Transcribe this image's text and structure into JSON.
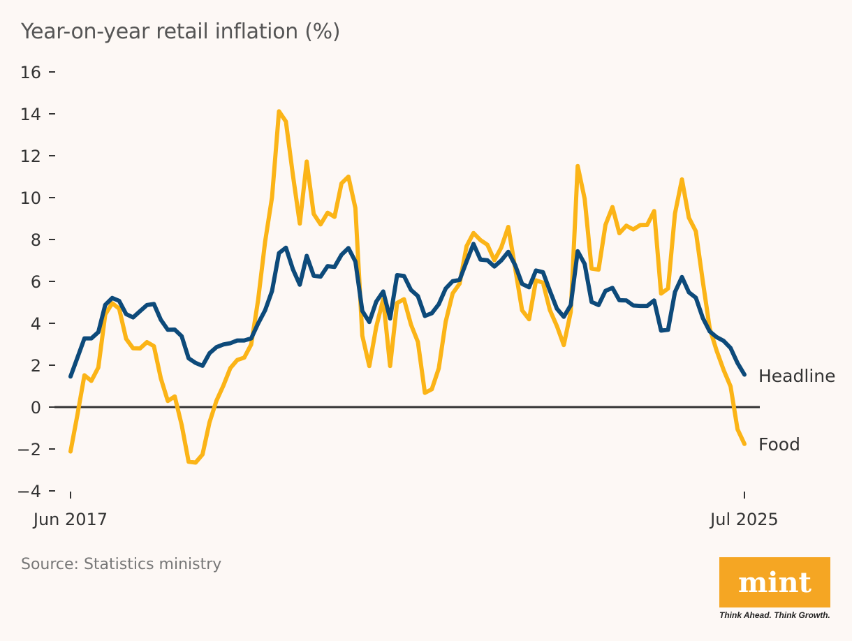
{
  "title": "Year-on-year retail inflation (%)",
  "source": "Source: Statistics ministry",
  "brand": {
    "name": "mint",
    "tagline": "Think Ahead. Think Growth.",
    "color": "#f5a623"
  },
  "chart_data": {
    "type": "line",
    "title": "Year-on-year retail inflation (%)",
    "xlabel": "",
    "ylabel": "",
    "ylim": [
      -4,
      16
    ],
    "yticks": [
      -4,
      -2,
      0,
      2,
      4,
      6,
      8,
      10,
      12,
      14,
      16
    ],
    "ytick_labels": [
      "−4",
      "−2",
      "0",
      "2",
      "4",
      "6",
      "8",
      "10",
      "12",
      "14",
      "16"
    ],
    "x_start": "Jun 2017",
    "x_end": "Jul 2025",
    "xtick_labels": [
      "Jun 2017",
      "Jul 2025"
    ],
    "grid": false,
    "zero_line": true,
    "series": [
      {
        "name": "Headline",
        "color": "#0d4a7a",
        "values": [
          1.46,
          2.36,
          3.28,
          3.28,
          3.58,
          4.88,
          5.21,
          5.07,
          4.44,
          4.28,
          4.58,
          4.87,
          4.92,
          4.17,
          3.69,
          3.7,
          3.38,
          2.33,
          2.11,
          1.97,
          2.57,
          2.86,
          2.99,
          3.05,
          3.18,
          3.18,
          3.28,
          3.99,
          4.62,
          5.54,
          7.35,
          7.61,
          6.58,
          5.84,
          7.22,
          6.27,
          6.23,
          6.73,
          6.69,
          7.27,
          7.59,
          6.95,
          4.59,
          4.06,
          5.03,
          5.52,
          4.23,
          6.3,
          6.26,
          5.59,
          5.3,
          4.35,
          4.48,
          4.91,
          5.66,
          6.01,
          6.07,
          6.95,
          7.79,
          7.04,
          7.01,
          6.71,
          7.0,
          7.41,
          6.77,
          5.88,
          5.72,
          6.52,
          6.44,
          5.55,
          4.7,
          4.31,
          4.87,
          7.44,
          6.83,
          5.02,
          4.87,
          5.55,
          5.69,
          5.1,
          5.09,
          4.85,
          4.83,
          4.83,
          5.09,
          3.65,
          3.69,
          5.49,
          6.21,
          5.48,
          5.22,
          4.26,
          3.61,
          3.34,
          3.16,
          2.82,
          2.1,
          1.55
        ]
      },
      {
        "name": "Food",
        "color": "#fbb417",
        "values": [
          -2.12,
          -0.36,
          1.52,
          1.25,
          1.89,
          4.42,
          4.96,
          4.7,
          3.26,
          2.81,
          2.8,
          3.1,
          2.91,
          1.37,
          0.29,
          0.51,
          -0.86,
          -2.61,
          -2.65,
          -2.26,
          -0.73,
          0.3,
          1.03,
          1.86,
          2.25,
          2.36,
          2.99,
          5.11,
          7.89,
          10.01,
          14.12,
          13.63,
          11.08,
          8.76,
          11.72,
          9.22,
          8.72,
          9.28,
          9.08,
          10.68,
          11.0,
          9.5,
          3.41,
          1.96,
          3.82,
          5.15,
          1.96,
          4.97,
          5.15,
          3.94,
          3.11,
          0.68,
          0.85,
          1.85,
          4.08,
          5.43,
          5.89,
          7.68,
          8.31,
          7.97,
          7.75,
          7.01,
          7.62,
          8.6,
          6.62,
          4.62,
          4.19,
          6.05,
          5.94,
          4.63,
          3.87,
          2.96,
          4.55,
          11.51,
          9.94,
          6.61,
          6.56,
          8.7,
          9.55,
          8.3,
          8.66,
          8.48,
          8.69,
          8.7,
          9.36,
          5.42,
          5.66,
          9.24,
          10.87,
          9.04,
          8.39,
          6.02,
          3.75,
          2.69,
          1.77,
          0.99,
          -1.06,
          -1.76
        ]
      }
    ]
  }
}
